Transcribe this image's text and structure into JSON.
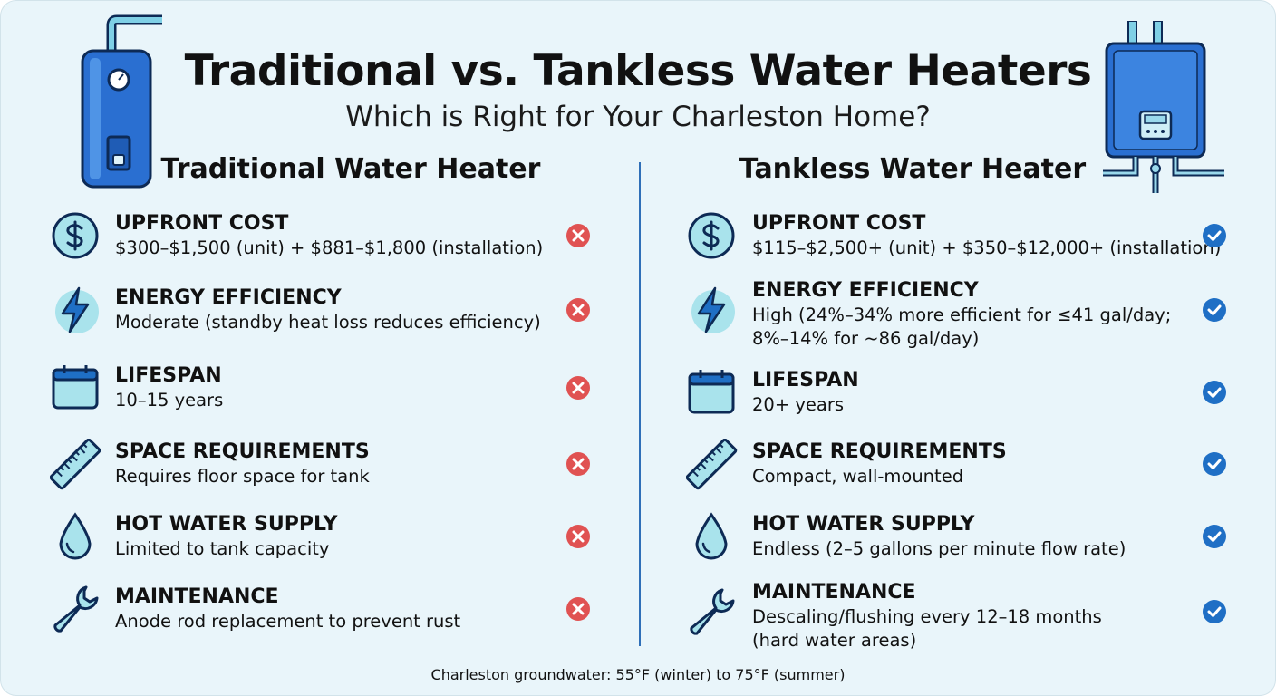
{
  "header": {
    "title": "Traditional vs. Tankless Water Heaters",
    "subtitle": "Which is Right for Your Charleston Home?"
  },
  "columns": [
    {
      "heading": "Traditional Water Heater",
      "rows": [
        {
          "label": "UPFRONT COST",
          "lines": [
            "$300–$1,500 (unit) + $881–$1,800 (installation)"
          ]
        },
        {
          "label": "ENERGY EFFICIENCY",
          "lines": [
            "Moderate (standby heat loss reduces efficiency)"
          ]
        },
        {
          "label": "LIFESPAN",
          "lines": [
            "10–15 years"
          ]
        },
        {
          "label": "SPACE REQUIREMENTS",
          "lines": [
            "Requires floor space for tank"
          ]
        },
        {
          "label": "HOT WATER SUPPLY",
          "lines": [
            "Limited to tank capacity"
          ]
        },
        {
          "label": "MAINTENANCE",
          "lines": [
            "Anode rod replacement to prevent rust"
          ]
        }
      ]
    },
    {
      "heading": "Tankless Water Heater",
      "rows": [
        {
          "label": "UPFRONT COST",
          "lines": [
            "$115–$2,500+ (unit) + $350–$12,000+ (installation)"
          ]
        },
        {
          "label": "ENERGY EFFICIENCY",
          "lines": [
            "High (24%–34% more efficient for ≤41 gal/day;",
            "8%–14% for ~86 gal/day)"
          ]
        },
        {
          "label": "LIFESPAN",
          "lines": [
            "20+ years"
          ]
        },
        {
          "label": "SPACE REQUIREMENTS",
          "lines": [
            "Compact, wall-mounted"
          ]
        },
        {
          "label": "HOT WATER SUPPLY",
          "lines": [
            "Endless (2–5 gallons per minute flow rate)"
          ]
        },
        {
          "label": "MAINTENANCE",
          "lines": [
            "Descaling/flushing every 12–18 months",
            "(hard water areas)"
          ]
        }
      ]
    }
  ],
  "footnote": "Charleston groundwater: 55°F (winter) to 75°F (summer)"
}
